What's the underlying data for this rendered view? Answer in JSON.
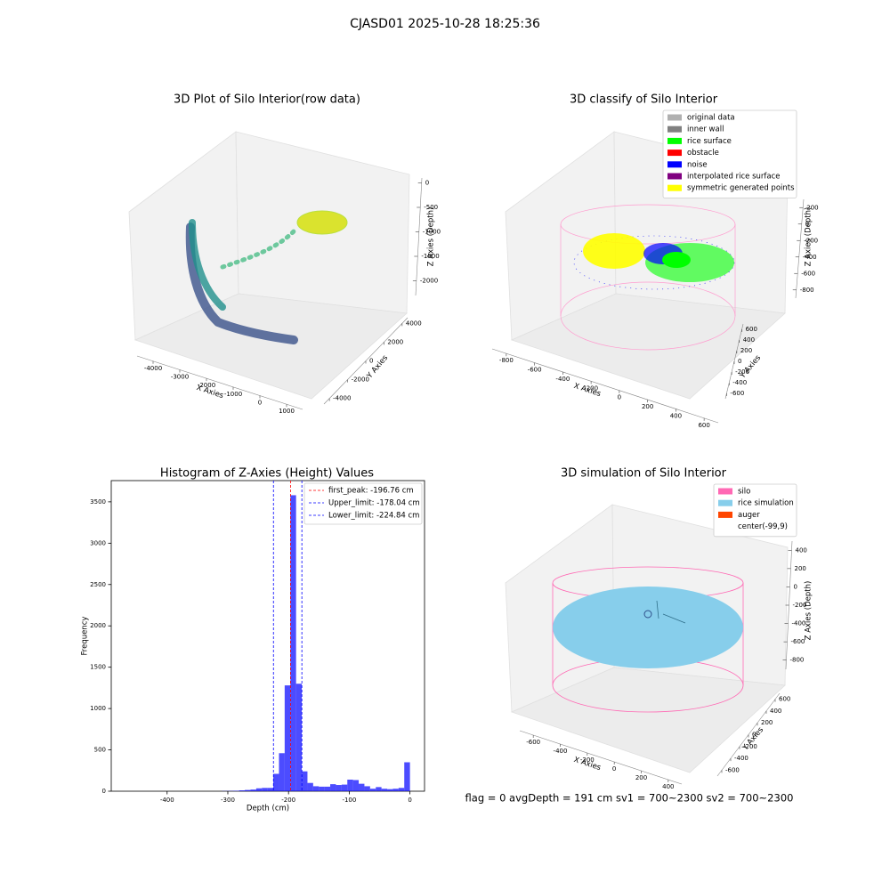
{
  "suptitle": "CJASD01 2025-10-28 18:25:36",
  "footer": "flag = 0     avgDepth = 191 cm  sv1 = 700~2300  sv2 = 700~2300",
  "chart_data": [
    {
      "type": "scatter3d",
      "title": "3D Plot of Silo Interior(row data)",
      "xlabel": "X Axies",
      "ylabel": "Y Axies",
      "zlabel": "Z Axies (Depth)",
      "xlim": [
        -4600,
        1600
      ],
      "xticks": [
        -4000,
        -3000,
        -2000,
        -1000,
        0,
        1000
      ],
      "ylim": [
        -4600,
        4600
      ],
      "yticks": [
        -4000,
        -2000,
        0,
        2000,
        4000
      ],
      "zlim": [
        -2300,
        100
      ],
      "zticks": [
        0,
        -500,
        -1000,
        -1500,
        -2000
      ]
    },
    {
      "type": "scatter3d",
      "title": "3D classify of Silo Interior",
      "xlabel": "X Axies",
      "ylabel": "Y Axies",
      "zlabel": "Z Axies (Depth)",
      "xlim": [
        -900,
        700
      ],
      "xticks": [
        -800,
        -600,
        -400,
        -200,
        0,
        200,
        400,
        600
      ],
      "ylim": [
        -700,
        700
      ],
      "yticks": [
        -600,
        -400,
        -200,
        0,
        200,
        400,
        600
      ],
      "zlim": [
        -900,
        300
      ],
      "zticks": [
        200,
        0,
        -200,
        -400,
        -600,
        -800
      ],
      "legend": [
        {
          "name": "original data",
          "color": "#b0b0b0"
        },
        {
          "name": "inner wall",
          "color": "#808080"
        },
        {
          "name": "rice surface",
          "color": "#00ff00"
        },
        {
          "name": "obstacle",
          "color": "#ff0000"
        },
        {
          "name": "noise",
          "color": "#0000ff"
        },
        {
          "name": "interpolated rice surface",
          "color": "#800080"
        },
        {
          "name": "symmetric generated points",
          "color": "#ffff00"
        }
      ]
    },
    {
      "type": "histogram",
      "title": "Histogram of Z-Axies (Height) Values",
      "xlabel": "Depth (cm)",
      "ylabel": "Frequency",
      "color": "#0000ff",
      "bins": [
        -469,
        -459.62,
        -450.24,
        -440.86,
        -431.48,
        -422.1,
        -412.72,
        -403.34,
        -393.96,
        -384.58,
        -375.2,
        -365.82,
        -356.44,
        -347.06,
        -337.68,
        -328.3,
        -318.92,
        -309.54,
        -300.16,
        -290.78,
        -281.4,
        -272.02,
        -262.64,
        -253.26,
        -243.88,
        -234.5,
        -225.12,
        -215.74,
        -206.36,
        -196.98,
        -187.6,
        -178.22,
        -168.84,
        -159.46,
        -150.08,
        -140.7,
        -131.32,
        -121.94,
        -112.56,
        -103.18,
        -93.8,
        -84.42,
        -75.04,
        -65.66,
        -56.28,
        -46.9,
        -37.52,
        -28.14,
        -18.76,
        -9.38,
        0
      ],
      "values": [
        0,
        0,
        0,
        0,
        0,
        0,
        0,
        0,
        0,
        0,
        0,
        0,
        0,
        0,
        0,
        0,
        0,
        2,
        3,
        5,
        10,
        15,
        20,
        35,
        40,
        40,
        210,
        460,
        1280,
        3580,
        1300,
        240,
        100,
        60,
        55,
        55,
        85,
        75,
        80,
        140,
        135,
        90,
        60,
        30,
        50,
        30,
        25,
        30,
        40,
        350
      ],
      "xlim": [
        -492,
        24
      ],
      "xticks": [
        -400,
        -300,
        -200,
        -100,
        0
      ],
      "ylim": [
        0,
        3757
      ],
      "yticks": [
        0,
        500,
        1000,
        1500,
        2000,
        2500,
        3000,
        3500
      ],
      "vlines": [
        {
          "name": "first_peak: -196.76 cm",
          "value": -196.76,
          "color": "#ff0000"
        },
        {
          "name": "Upper_limit: -178.04 cm",
          "value": -178.04,
          "color": "#0000ff"
        },
        {
          "name": "Lower_limit: -224.84 cm",
          "value": -224.84,
          "color": "#0000ff"
        }
      ]
    },
    {
      "type": "mesh3d",
      "title": "3D simulation of Silo Interior",
      "xlabel": "X Axies",
      "ylabel": "Y Axies",
      "zlabel": "Z Axies (Depth)",
      "xlim": [
        -700,
        500
      ],
      "xticks": [
        -600,
        -400,
        -200,
        0,
        200,
        400
      ],
      "ylim": [
        -700,
        700
      ],
      "yticks": [
        -600,
        -400,
        -200,
        0,
        200,
        400,
        600
      ],
      "zlim": [
        -900,
        500
      ],
      "zticks": [
        400,
        200,
        0,
        -200,
        -400,
        -600,
        -800
      ],
      "legend": [
        {
          "name": "silo",
          "color": "#ff69b4"
        },
        {
          "name": "rice simulation",
          "color": "#87ceeb"
        },
        {
          "name": "auger",
          "color": "#ff4500"
        },
        {
          "name": "center(-99,9)"
        }
      ]
    }
  ]
}
